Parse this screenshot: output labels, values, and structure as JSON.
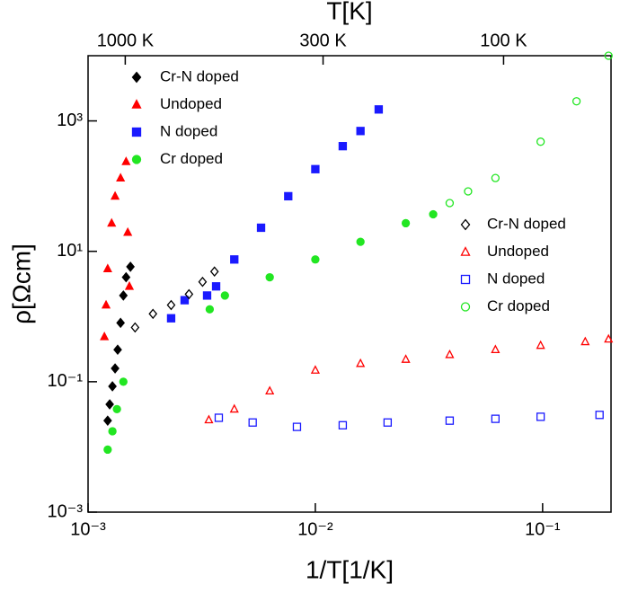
{
  "chart_data": {
    "type": "scatter",
    "title": "T[K]",
    "x_label": "1/T[1/K]",
    "y_label": "ρ[Ωcm]",
    "x_scale": "log",
    "y_scale": "log",
    "x2_scale": "log",
    "xlim": [
      0.001,
      0.2
    ],
    "xticks": [
      {
        "value": 0.001,
        "label": "10⁻³"
      },
      {
        "value": 0.01,
        "label": "10⁻²"
      },
      {
        "value": 0.1,
        "label": "10⁻¹"
      }
    ],
    "ylim": [
      0.001,
      10000
    ],
    "yticks": [
      {
        "value": 0.001,
        "label": "10⁻³"
      },
      {
        "value": 0.1,
        "label": "10⁻¹"
      },
      {
        "value": 10,
        "label": "10¹"
      },
      {
        "value": 1000,
        "label": "10³"
      }
    ],
    "x2lim": [
      1254,
      52
    ],
    "x2ticks": [
      {
        "value": 1000,
        "label": "1000 K"
      },
      {
        "value": 300,
        "label": "300 K"
      },
      {
        "value": 100,
        "label": "100 K"
      }
    ],
    "series": [
      {
        "name": "Cr-N doped",
        "color": "#000000",
        "marker": "diamond",
        "filled": true,
        "legend": "upper left",
        "x": [
          0.00122,
          0.001245,
          0.00128,
          0.001315,
          0.00135,
          0.00139,
          0.00143,
          0.00147,
          0.001536
        ],
        "values": [
          0.0253,
          0.045,
          0.085,
          0.16,
          0.31,
          0.8,
          2.1,
          4.0,
          5.8
        ]
      },
      {
        "name": "Undoped",
        "color": "#ff0000",
        "marker": "triangle",
        "filled": true,
        "legend": "upper left",
        "x": [
          0.00118,
          0.0012,
          0.00122,
          0.00127,
          0.001315,
          0.00139,
          0.00147,
          0.001495,
          0.00152
        ],
        "values": [
          0.49,
          1.5,
          5.4,
          27,
          70,
          133,
          237,
          19.5,
          2.9
        ]
      },
      {
        "name": "N doped",
        "color": "#1a1aff",
        "marker": "square",
        "filled": true,
        "legend": "upper left",
        "x": [
          0.00232,
          0.00266,
          0.00334,
          0.00366,
          0.0044,
          0.00577,
          0.0076,
          0.01,
          0.0132,
          0.0158,
          0.019
        ],
        "values": [
          0.94,
          1.78,
          2.1,
          2.9,
          7.5,
          23,
          70,
          182,
          410,
          700,
          1500
        ]
      },
      {
        "name": "Cr doped",
        "color": "#22e622",
        "marker": "circle",
        "filled": true,
        "legend": "upper left",
        "x": [
          0.00122,
          0.00128,
          0.00134,
          0.00143,
          0.00343,
          0.004,
          0.0063,
          0.01,
          0.0158,
          0.025,
          0.033
        ],
        "values": [
          0.0091,
          0.0174,
          0.038,
          0.1,
          1.29,
          2.1,
          4.0,
          7.5,
          14,
          27,
          37
        ]
      },
      {
        "name": "Cr-N doped",
        "color": "#000000",
        "marker": "diamond",
        "filled": false,
        "legend": "center right",
        "x": [
          0.00161,
          0.00193,
          0.00232,
          0.00278,
          0.00319,
          0.0036
        ],
        "values": [
          0.68,
          1.1,
          1.5,
          2.2,
          3.4,
          4.9
        ]
      },
      {
        "name": "Undoped",
        "color": "#ff0000",
        "marker": "triangle",
        "filled": false,
        "legend": "center right",
        "x": [
          0.0034,
          0.0044,
          0.0063,
          0.01,
          0.0158,
          0.025,
          0.039,
          0.062,
          0.098,
          0.154,
          0.195
        ],
        "values": [
          0.026,
          0.038,
          0.072,
          0.15,
          0.19,
          0.22,
          0.26,
          0.31,
          0.36,
          0.41,
          0.45
        ]
      },
      {
        "name": "N doped",
        "color": "#1a1aff",
        "marker": "square",
        "filled": false,
        "legend": "center right",
        "x": [
          0.00376,
          0.0053,
          0.0083,
          0.0132,
          0.0208,
          0.039,
          0.062,
          0.098,
          0.178
        ],
        "values": [
          0.028,
          0.0237,
          0.0203,
          0.0215,
          0.0237,
          0.0253,
          0.027,
          0.029,
          0.031
        ]
      },
      {
        "name": "Cr doped",
        "color": "#22e622",
        "marker": "circle",
        "filled": false,
        "legend": "center right",
        "x": [
          0.039,
          0.047,
          0.062,
          0.098,
          0.141,
          0.195
        ],
        "values": [
          55,
          83,
          133,
          480,
          2000,
          10000
        ]
      }
    ]
  }
}
